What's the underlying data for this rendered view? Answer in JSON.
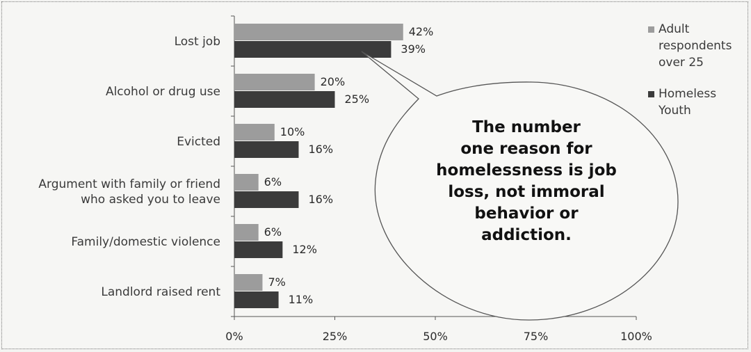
{
  "chart_data": {
    "type": "bar",
    "orientation": "horizontal",
    "categories": [
      "Lost job",
      "Alcohol or drug use",
      "Evicted",
      "Argument with family or friend\nwho asked you to leave",
      "Family/domestic violence",
      "Landlord raised rent"
    ],
    "series": [
      {
        "name": "Adult respondents over 25",
        "values": [
          42,
          20,
          10,
          6,
          6,
          7
        ],
        "color": "#9c9c9c",
        "labels": [
          "42%",
          "20%",
          "10%",
          "6%",
          "6%",
          "7%"
        ]
      },
      {
        "name": "Homeless Youth",
        "values": [
          39,
          25,
          16,
          16,
          12,
          11
        ],
        "color": "#3b3b3b",
        "labels": [
          "39%",
          "25%",
          "16%",
          "16%",
          "12%",
          "11%"
        ]
      }
    ],
    "xlim": [
      0,
      100
    ],
    "x_ticks": [
      "0%",
      "25%",
      "50%",
      "75%",
      "100%"
    ],
    "grid": false,
    "legend_position": "right",
    "legend_lines": [
      [
        "Adult",
        "respondents",
        "over 25"
      ],
      [
        "Homeless",
        "Youth"
      ]
    ],
    "annotation": {
      "lines": [
        "The number",
        "one reason for",
        "homelessness  is  job",
        "loss, not immoral",
        "behavior or",
        "addiction."
      ]
    }
  }
}
